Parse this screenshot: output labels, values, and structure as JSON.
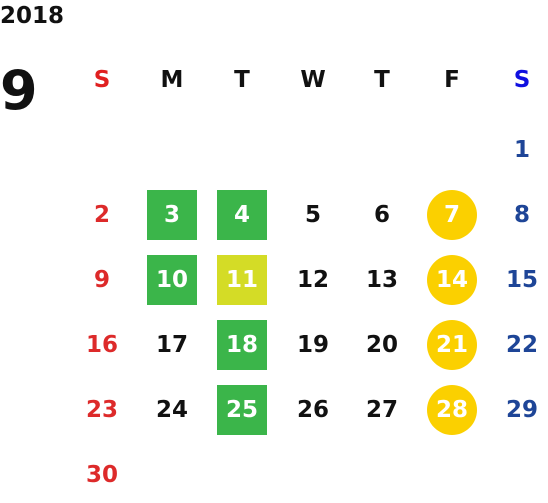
{
  "calendar": {
    "year": "2018",
    "month": "9",
    "weekdays": [
      {
        "label": "S",
        "color": "#e02020"
      },
      {
        "label": "M",
        "color": "#111111"
      },
      {
        "label": "T",
        "color": "#111111"
      },
      {
        "label": "W",
        "color": "#111111"
      },
      {
        "label": "T",
        "color": "#111111"
      },
      {
        "label": "F",
        "color": "#111111"
      },
      {
        "label": "S",
        "color": "#1010e0"
      }
    ],
    "colors": {
      "sunday": "#dd2a2a",
      "saturday": "#1e4597",
      "weekday": "#111111",
      "green": "#3bb54a",
      "lime": "#d4dc26",
      "yellow": "#fbd000",
      "highlight_text": "#ffffff"
    },
    "days": [
      {
        "day": "1",
        "weekday": 6,
        "week": 0,
        "mark": ""
      },
      {
        "day": "2",
        "weekday": 0,
        "week": 1,
        "mark": ""
      },
      {
        "day": "3",
        "weekday": 1,
        "week": 1,
        "mark": "green-square"
      },
      {
        "day": "4",
        "weekday": 2,
        "week": 1,
        "mark": "green-square"
      },
      {
        "day": "5",
        "weekday": 3,
        "week": 1,
        "mark": ""
      },
      {
        "day": "6",
        "weekday": 4,
        "week": 1,
        "mark": ""
      },
      {
        "day": "7",
        "weekday": 5,
        "week": 1,
        "mark": "yellow-circle"
      },
      {
        "day": "8",
        "weekday": 6,
        "week": 1,
        "mark": ""
      },
      {
        "day": "9",
        "weekday": 0,
        "week": 2,
        "mark": ""
      },
      {
        "day": "10",
        "weekday": 1,
        "week": 2,
        "mark": "green-square"
      },
      {
        "day": "11",
        "weekday": 2,
        "week": 2,
        "mark": "lime-square"
      },
      {
        "day": "12",
        "weekday": 3,
        "week": 2,
        "mark": ""
      },
      {
        "day": "13",
        "weekday": 4,
        "week": 2,
        "mark": ""
      },
      {
        "day": "14",
        "weekday": 5,
        "week": 2,
        "mark": "yellow-circle"
      },
      {
        "day": "15",
        "weekday": 6,
        "week": 2,
        "mark": ""
      },
      {
        "day": "16",
        "weekday": 0,
        "week": 3,
        "mark": ""
      },
      {
        "day": "17",
        "weekday": 1,
        "week": 3,
        "mark": ""
      },
      {
        "day": "18",
        "weekday": 2,
        "week": 3,
        "mark": "green-square"
      },
      {
        "day": "19",
        "weekday": 3,
        "week": 3,
        "mark": ""
      },
      {
        "day": "20",
        "weekday": 4,
        "week": 3,
        "mark": ""
      },
      {
        "day": "21",
        "weekday": 5,
        "week": 3,
        "mark": "yellow-circle"
      },
      {
        "day": "22",
        "weekday": 6,
        "week": 3,
        "mark": ""
      },
      {
        "day": "23",
        "weekday": 0,
        "week": 4,
        "mark": ""
      },
      {
        "day": "24",
        "weekday": 1,
        "week": 4,
        "mark": ""
      },
      {
        "day": "25",
        "weekday": 2,
        "week": 4,
        "mark": "green-square"
      },
      {
        "day": "26",
        "weekday": 3,
        "week": 4,
        "mark": ""
      },
      {
        "day": "27",
        "weekday": 4,
        "week": 4,
        "mark": ""
      },
      {
        "day": "28",
        "weekday": 5,
        "week": 4,
        "mark": "yellow-circle"
      },
      {
        "day": "29",
        "weekday": 6,
        "week": 4,
        "mark": ""
      },
      {
        "day": "30",
        "weekday": 0,
        "week": 5,
        "mark": ""
      }
    ]
  }
}
